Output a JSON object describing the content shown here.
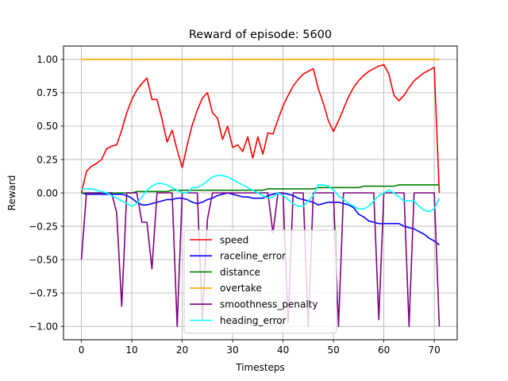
{
  "chart_data": {
    "type": "line",
    "title": "Reward of episode: 5600",
    "xlabel": "Timesteps",
    "ylabel": "Reward",
    "xlim": [
      -3.55,
      74.55
    ],
    "ylim": [
      -1.1,
      1.1
    ],
    "xticks": [
      0,
      10,
      20,
      30,
      40,
      50,
      60,
      70
    ],
    "yticks": [
      -1.0,
      -0.75,
      -0.5,
      -0.25,
      0.0,
      0.25,
      0.5,
      0.75,
      1.0
    ],
    "ytick_labels": [
      "−1.00",
      "−0.75",
      "−0.50",
      "−0.25",
      "0.00",
      "0.25",
      "0.50",
      "0.75",
      "1.00"
    ],
    "grid": true,
    "legend_position": "lower center",
    "series": [
      {
        "name": "speed",
        "color": "#ff0000",
        "values": [
          0.0,
          0.16,
          0.2,
          0.22,
          0.25,
          0.33,
          0.35,
          0.36,
          0.47,
          0.6,
          0.7,
          0.77,
          0.82,
          0.86,
          0.7,
          0.7,
          0.55,
          0.38,
          0.47,
          0.32,
          0.19,
          0.36,
          0.51,
          0.62,
          0.71,
          0.75,
          0.6,
          0.56,
          0.4,
          0.5,
          0.34,
          0.36,
          0.31,
          0.42,
          0.26,
          0.42,
          0.29,
          0.45,
          0.44,
          0.55,
          0.65,
          0.73,
          0.8,
          0.85,
          0.89,
          0.91,
          0.93,
          0.78,
          0.67,
          0.54,
          0.46,
          0.54,
          0.63,
          0.72,
          0.79,
          0.84,
          0.88,
          0.91,
          0.93,
          0.95,
          0.96,
          0.89,
          0.73,
          0.69,
          0.73,
          0.79,
          0.84,
          0.87,
          0.9,
          0.92,
          0.94,
          0.0
        ]
      },
      {
        "name": "raceline_error",
        "color": "#0000ff",
        "values": [
          0.0,
          -0.01,
          -0.01,
          -0.01,
          -0.01,
          -0.01,
          -0.01,
          -0.01,
          -0.01,
          -0.02,
          -0.04,
          -0.07,
          -0.09,
          -0.09,
          -0.08,
          -0.07,
          -0.06,
          -0.05,
          -0.05,
          -0.04,
          -0.04,
          -0.05,
          -0.07,
          -0.08,
          -0.07,
          -0.05,
          -0.04,
          -0.02,
          -0.01,
          0.0,
          -0.01,
          -0.02,
          -0.03,
          -0.03,
          -0.04,
          -0.04,
          -0.04,
          -0.02,
          -0.01,
          0.0,
          0.0,
          -0.01,
          -0.02,
          -0.04,
          -0.05,
          -0.06,
          -0.07,
          -0.09,
          -0.08,
          -0.07,
          -0.07,
          -0.07,
          -0.08,
          -0.09,
          -0.11,
          -0.16,
          -0.18,
          -0.21,
          -0.22,
          -0.23,
          -0.23,
          -0.23,
          -0.23,
          -0.23,
          -0.25,
          -0.26,
          -0.27,
          -0.29,
          -0.31,
          -0.34,
          -0.36,
          -0.39
        ]
      },
      {
        "name": "distance",
        "color": "#008000",
        "values": [
          0.0,
          0.0,
          0.0,
          0.0,
          0.0,
          0.0,
          0.0,
          0.0,
          0.0,
          0.0,
          0.0,
          0.01,
          0.01,
          0.01,
          0.01,
          0.01,
          0.01,
          0.01,
          0.02,
          0.02,
          0.02,
          0.02,
          0.02,
          0.02,
          0.02,
          0.02,
          0.02,
          0.02,
          0.02,
          0.02,
          0.02,
          0.02,
          0.02,
          0.02,
          0.02,
          0.02,
          0.02,
          0.03,
          0.03,
          0.03,
          0.03,
          0.03,
          0.03,
          0.03,
          0.03,
          0.03,
          0.03,
          0.04,
          0.04,
          0.04,
          0.04,
          0.04,
          0.04,
          0.04,
          0.04,
          0.04,
          0.05,
          0.05,
          0.05,
          0.05,
          0.05,
          0.05,
          0.05,
          0.06,
          0.06,
          0.06,
          0.06,
          0.06,
          0.06,
          0.06,
          0.06,
          0.06
        ]
      },
      {
        "name": "overtake",
        "color": "#ffa500",
        "values": [
          1.0,
          1.0,
          1.0,
          1.0,
          1.0,
          1.0,
          1.0,
          1.0,
          1.0,
          1.0,
          1.0,
          1.0,
          1.0,
          1.0,
          1.0,
          1.0,
          1.0,
          1.0,
          1.0,
          1.0,
          1.0,
          1.0,
          1.0,
          1.0,
          1.0,
          1.0,
          1.0,
          1.0,
          1.0,
          1.0,
          1.0,
          1.0,
          1.0,
          1.0,
          1.0,
          1.0,
          1.0,
          1.0,
          1.0,
          1.0,
          1.0,
          1.0,
          1.0,
          1.0,
          1.0,
          1.0,
          1.0,
          1.0,
          1.0,
          1.0,
          1.0,
          1.0,
          1.0,
          1.0,
          1.0,
          1.0,
          1.0,
          1.0,
          1.0,
          1.0,
          1.0,
          1.0,
          1.0,
          1.0,
          1.0,
          1.0,
          1.0,
          1.0,
          1.0,
          1.0,
          1.0,
          1.0
        ]
      },
      {
        "name": "smoothness_penalty",
        "color": "#800080",
        "values": [
          -0.5,
          0.0,
          0.0,
          0.0,
          0.0,
          0.0,
          0.0,
          -0.15,
          -0.85,
          0.0,
          0.0,
          0.0,
          -0.22,
          -0.22,
          -0.57,
          0.0,
          0.0,
          0.0,
          0.0,
          -1.0,
          0.0,
          0.0,
          0.0,
          0.0,
          -0.95,
          -0.2,
          0.0,
          0.0,
          0.0,
          0.0,
          0.0,
          0.0,
          0.0,
          0.0,
          0.0,
          0.0,
          0.0,
          0.0,
          -0.3,
          0.0,
          0.0,
          -0.97,
          0.0,
          0.0,
          0.0,
          -1.0,
          0.0,
          0.0,
          0.0,
          0.0,
          0.0,
          -1.0,
          0.0,
          0.0,
          0.0,
          0.0,
          0.0,
          0.0,
          0.0,
          -0.95,
          0.0,
          0.0,
          0.0,
          0.0,
          0.0,
          -1.0,
          0.0,
          0.0,
          0.0,
          0.0,
          0.0,
          -1.0
        ]
      },
      {
        "name": "heading_error",
        "color": "#00ffff",
        "values": [
          0.03,
          0.03,
          0.03,
          0.02,
          0.01,
          0.0,
          -0.02,
          -0.04,
          -0.06,
          -0.08,
          -0.1,
          -0.08,
          -0.03,
          0.02,
          0.05,
          0.07,
          0.07,
          0.06,
          0.04,
          0.02,
          0.0,
          0.0,
          0.04,
          0.04,
          0.06,
          0.09,
          0.12,
          0.13,
          0.13,
          0.12,
          0.1,
          0.08,
          0.06,
          0.04,
          0.02,
          0.0,
          -0.02,
          -0.04,
          -0.03,
          0.0,
          -0.02,
          -0.05,
          -0.08,
          -0.1,
          -0.1,
          -0.06,
          -0.02,
          0.06,
          0.06,
          0.05,
          0.02,
          -0.02,
          -0.05,
          -0.08,
          -0.1,
          -0.12,
          -0.12,
          -0.1,
          -0.06,
          -0.02,
          0.0,
          0.02,
          0.0,
          -0.03,
          -0.06,
          -0.06,
          -0.06,
          -0.1,
          -0.13,
          -0.14,
          -0.12,
          -0.04
        ]
      }
    ]
  }
}
